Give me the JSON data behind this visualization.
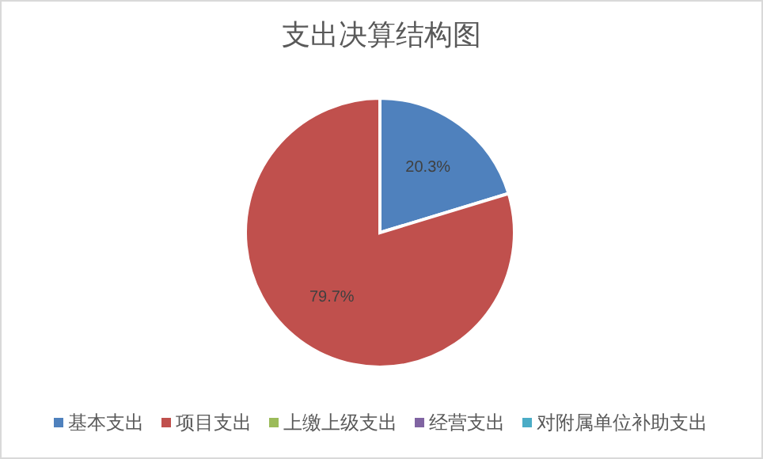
{
  "chart_data": {
    "type": "pie",
    "title": "支出决算结构图",
    "categories": [
      "基本支出",
      "项目支出",
      "上缴上级支出",
      "经营支出",
      "对附属单位补助支出"
    ],
    "values": [
      20.3,
      79.7,
      0,
      0,
      0
    ],
    "colors": [
      "#4f81bd",
      "#c0504d",
      "#9bbb59",
      "#8064a2",
      "#4bacc6"
    ],
    "value_labels": [
      "20.3%",
      "79.7%",
      null,
      null,
      null
    ],
    "legend": "bottom"
  }
}
